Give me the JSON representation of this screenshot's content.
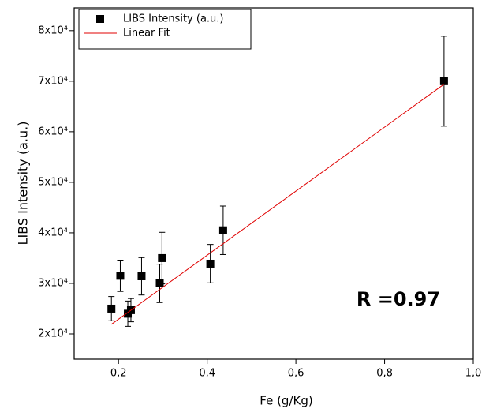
{
  "chart_data": {
    "type": "scatter",
    "xlabel": "Fe (g/Kg)",
    "ylabel": "LIBS Intensity (a.u.)",
    "annotation": "R =0.97",
    "xlim": [
      0.1,
      1.0
    ],
    "xticks": [
      {
        "value": 0.2,
        "label": "0,2"
      },
      {
        "value": 0.4,
        "label": "0,4"
      },
      {
        "value": 0.6,
        "label": "0,6"
      },
      {
        "value": 0.8,
        "label": "0,8"
      },
      {
        "value": 1.0,
        "label": "1,0"
      }
    ],
    "ylim": [
      15000,
      84500
    ],
    "yticks": [
      {
        "value": 20000,
        "label": "2x10⁴"
      },
      {
        "value": 30000,
        "label": "3x10⁴"
      },
      {
        "value": 40000,
        "label": "4x10⁴"
      },
      {
        "value": 50000,
        "label": "5x10⁴"
      },
      {
        "value": 60000,
        "label": "6x10⁴"
      },
      {
        "value": 70000,
        "label": "7x10⁴"
      },
      {
        "value": 80000,
        "label": "8x10⁴"
      }
    ],
    "legend": "upper left",
    "series": [
      {
        "name": "LIBS Intensity (a.u.)",
        "color": "#000000",
        "marker": "square",
        "x": [
          0.184,
          0.204,
          0.221,
          0.228,
          0.252,
          0.293,
          0.298,
          0.407,
          0.436,
          0.934
        ],
        "values": [
          25000,
          31500,
          24000,
          24700,
          31400,
          30000,
          35000,
          33900,
          40500,
          70000
        ],
        "errors": [
          2400,
          3100,
          2500,
          2300,
          3700,
          3800,
          5100,
          3800,
          4800,
          8900
        ]
      },
      {
        "name": "Linear Fit",
        "color": "#e00000",
        "marker": "line",
        "x": [
          0.184,
          0.934
        ],
        "values": [
          21900,
          69400
        ]
      }
    ]
  }
}
